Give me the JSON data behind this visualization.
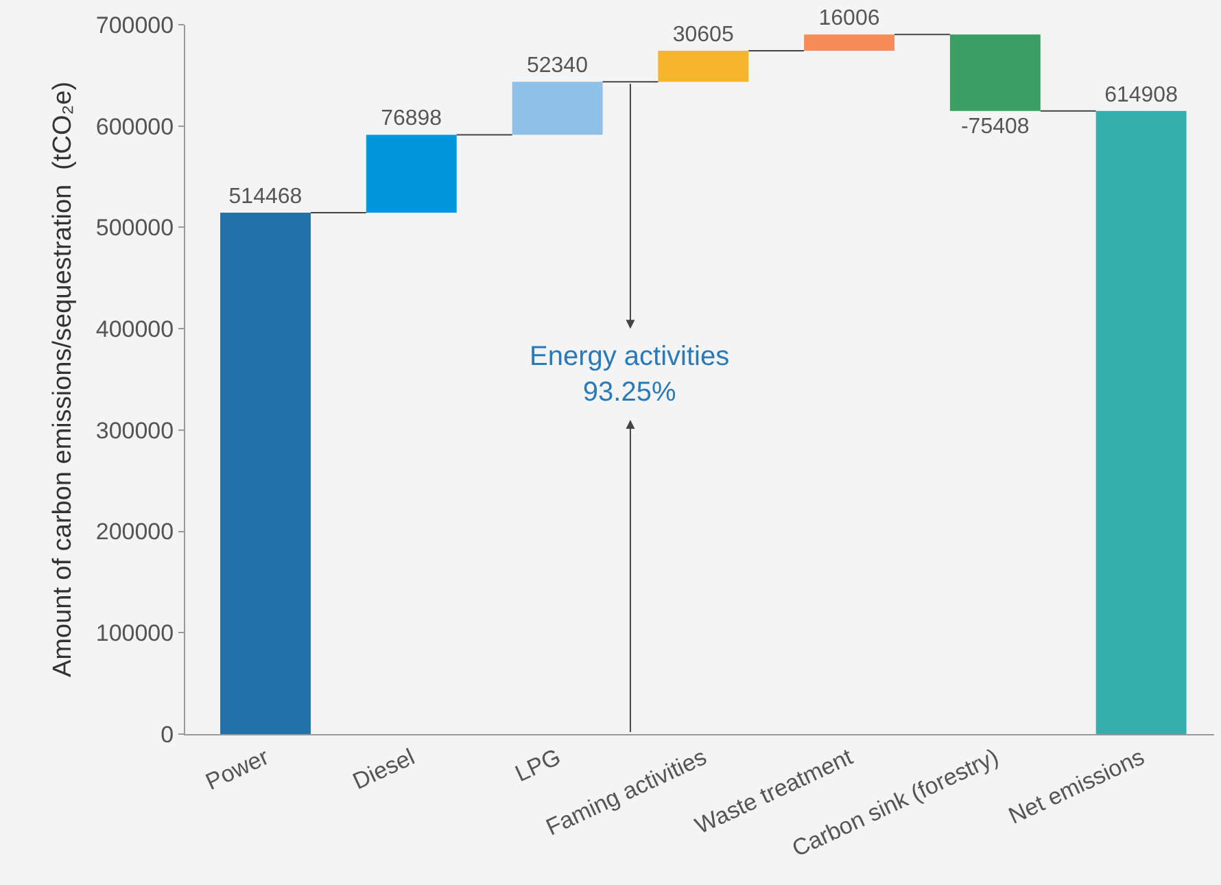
{
  "chart_data": {
    "type": "bar",
    "ylabel": "Amount of carbon emissions/sequestration  (tCO₂e)",
    "categories": [
      "Power",
      "Diesel",
      "LPG",
      "Faming activities",
      "Waste treatment",
      "Carbon sink (forestry)",
      "Net emissions"
    ],
    "values": [
      514468,
      76898,
      52340,
      30605,
      16006,
      -75408,
      614908
    ],
    "base": [
      0,
      514468,
      591366,
      643706,
      674311,
      690317,
      0
    ],
    "colors": [
      "#2271ab",
      "#0097dc",
      "#8fc0e8",
      "#f5b52d",
      "#f58c5a",
      "#3a9f62",
      "#35aeae"
    ],
    "ylim": [
      0,
      700000
    ],
    "yticks": [
      0,
      100000,
      200000,
      300000,
      400000,
      500000,
      600000,
      700000
    ],
    "data_labels": true,
    "grid": false,
    "annotations": [
      "Energy activities\n93.25%"
    ]
  }
}
